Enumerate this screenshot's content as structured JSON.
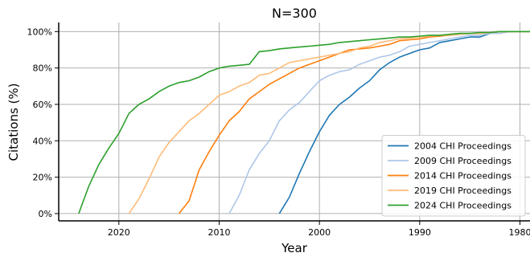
{
  "chart_data": {
    "type": "line",
    "title": "N=300",
    "xlabel": "Year",
    "ylabel": "Citations (%)",
    "xlim": [
      2026,
      1979
    ],
    "ylim": [
      -0.04,
      1.05
    ],
    "x_ticks": [
      2020,
      2010,
      2000,
      1990,
      1980
    ],
    "x_tick_labels": [
      "2020",
      "2010",
      "2000",
      "1990",
      "1980"
    ],
    "y_ticks": [
      0,
      0.2,
      0.4,
      0.6,
      0.8,
      1.0
    ],
    "y_tick_labels": [
      "0%",
      "20%",
      "40%",
      "60%",
      "80%",
      "100%"
    ],
    "grid": true,
    "legend_position": "lower-right",
    "series": [
      {
        "name": "2004 CHI Proceedings",
        "color": "#1f77b4",
        "x": [
          2004,
          2003,
          2002,
          2001,
          2000,
          1999,
          1998,
          1997,
          1996,
          1995,
          1994,
          1993,
          1992,
          1991,
          1990,
          1989,
          1988,
          1987,
          1986,
          1985,
          1984,
          1983,
          1982,
          1981,
          1980,
          1979
        ],
        "y": [
          0.0,
          0.09,
          0.22,
          0.34,
          0.45,
          0.54,
          0.6,
          0.64,
          0.69,
          0.73,
          0.79,
          0.83,
          0.86,
          0.88,
          0.9,
          0.91,
          0.94,
          0.95,
          0.96,
          0.97,
          0.97,
          0.99,
          1.0,
          1.0,
          1.0,
          1.0
        ]
      },
      {
        "name": "2009 CHI Proceedings",
        "color": "#aec7e8",
        "x": [
          2009,
          2008,
          2007,
          2006,
          2005,
          2004,
          2003,
          2002,
          2001,
          2000,
          1999,
          1998,
          1997,
          1996,
          1995,
          1994,
          1993,
          1992,
          1991,
          1990,
          1989,
          1988,
          1987,
          1986,
          1985,
          1984,
          1983,
          1982,
          1981,
          1980,
          1979
        ],
        "y": [
          0.0,
          0.1,
          0.24,
          0.33,
          0.4,
          0.51,
          0.57,
          0.61,
          0.67,
          0.73,
          0.76,
          0.78,
          0.79,
          0.82,
          0.84,
          0.86,
          0.87,
          0.89,
          0.92,
          0.93,
          0.94,
          0.95,
          0.96,
          0.97,
          0.98,
          0.98,
          0.99,
          0.99,
          1.0,
          1.0,
          1.0
        ]
      },
      {
        "name": "2014 CHI Proceedings",
        "color": "#ff7f0e",
        "x": [
          2014,
          2013,
          2012,
          2011,
          2010,
          2009,
          2008,
          2007,
          2006,
          2005,
          2004,
          2003,
          2002,
          2001,
          2000,
          1999,
          1998,
          1997,
          1996,
          1995,
          1994,
          1993,
          1992,
          1991,
          1990,
          1989,
          1988,
          1987,
          1986,
          1985,
          1984,
          1983,
          1982,
          1981,
          1980,
          1979
        ],
        "y": [
          0.0,
          0.07,
          0.24,
          0.34,
          0.43,
          0.51,
          0.56,
          0.63,
          0.67,
          0.71,
          0.74,
          0.77,
          0.8,
          0.82,
          0.84,
          0.86,
          0.88,
          0.9,
          0.905,
          0.91,
          0.92,
          0.93,
          0.95,
          0.955,
          0.96,
          0.97,
          0.975,
          0.98,
          0.985,
          0.99,
          0.99,
          0.995,
          1.0,
          1.0,
          1.0,
          1.0
        ]
      },
      {
        "name": "2019 CHI Proceedings",
        "color": "#ffbb78",
        "x": [
          2019,
          2018,
          2017,
          2016,
          2015,
          2014,
          2013,
          2012,
          2011,
          2010,
          2009,
          2008,
          2007,
          2006,
          2005,
          2004,
          2003,
          2002,
          2001,
          2000,
          1999,
          1998,
          1997,
          1996,
          1995,
          1994,
          1993,
          1992,
          1991,
          1990,
          1989,
          1988,
          1987,
          1986,
          1985,
          1984,
          1983,
          1982,
          1981,
          1980,
          1979
        ],
        "y": [
          0.0,
          0.08,
          0.19,
          0.31,
          0.39,
          0.45,
          0.51,
          0.55,
          0.6,
          0.65,
          0.67,
          0.7,
          0.72,
          0.76,
          0.77,
          0.8,
          0.83,
          0.84,
          0.85,
          0.86,
          0.87,
          0.88,
          0.89,
          0.91,
          0.92,
          0.94,
          0.95,
          0.96,
          0.965,
          0.97,
          0.975,
          0.98,
          0.98,
          0.985,
          0.99,
          0.99,
          0.995,
          1.0,
          1.0,
          1.0,
          1.0
        ]
      },
      {
        "name": "2024 CHI Proceedings",
        "color": "#2ca02c",
        "x": [
          2024,
          2023,
          2022,
          2021,
          2020,
          2019,
          2018,
          2017,
          2016,
          2015,
          2014,
          2013,
          2012,
          2011,
          2010,
          2009,
          2008,
          2007,
          2006,
          2005,
          2004,
          2003,
          2002,
          2001,
          2000,
          1999,
          1998,
          1997,
          1996,
          1995,
          1994,
          1993,
          1992,
          1991,
          1990,
          1989,
          1988,
          1987,
          1986,
          1985,
          1984,
          1983,
          1982,
          1981,
          1980,
          1979
        ],
        "y": [
          0.0,
          0.15,
          0.27,
          0.36,
          0.44,
          0.55,
          0.6,
          0.63,
          0.67,
          0.7,
          0.72,
          0.73,
          0.75,
          0.78,
          0.8,
          0.81,
          0.815,
          0.82,
          0.89,
          0.895,
          0.905,
          0.91,
          0.915,
          0.92,
          0.925,
          0.93,
          0.94,
          0.945,
          0.95,
          0.955,
          0.96,
          0.965,
          0.97,
          0.97,
          0.975,
          0.98,
          0.98,
          0.985,
          0.99,
          0.99,
          0.995,
          0.995,
          1.0,
          1.0,
          1.0,
          1.0
        ]
      }
    ]
  }
}
